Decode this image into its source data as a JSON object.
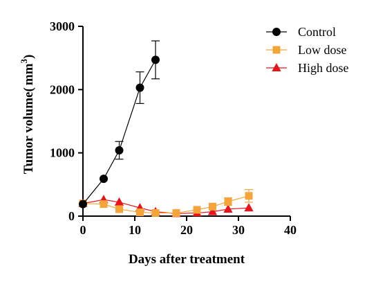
{
  "chart_data": {
    "type": "line",
    "xlabel": "Days after treatment",
    "ylabel_main": "Tumor volume",
    "ylabel_open": "(",
    "ylabel_unit": "mm",
    "ylabel_sup": "3",
    "ylabel_close": ")",
    "xlim": [
      0,
      40
    ],
    "ylim": [
      0,
      3000
    ],
    "x_ticks": [
      0,
      10,
      20,
      30,
      40
    ],
    "y_ticks": [
      0,
      1000,
      2000,
      3000
    ],
    "x_tick_labels": [
      "0",
      "10",
      "20",
      "30",
      "40"
    ],
    "y_tick_labels": [
      "0",
      "1000",
      "2000",
      "3000"
    ],
    "grid": false,
    "legend_position": "top-right",
    "series": [
      {
        "name": "Control",
        "color": "#000000",
        "marker": "circle",
        "points": [
          {
            "x": 0,
            "y": 190,
            "err": 0
          },
          {
            "x": 4,
            "y": 590,
            "err": 0
          },
          {
            "x": 7,
            "y": 1040,
            "err": 140
          },
          {
            "x": 11,
            "y": 2030,
            "err": 250
          },
          {
            "x": 14,
            "y": 2470,
            "err": 300
          }
        ]
      },
      {
        "name": "Low dose",
        "color": "#f5a43a",
        "marker": "square",
        "points": [
          {
            "x": 0,
            "y": 200,
            "err": 0
          },
          {
            "x": 4,
            "y": 190,
            "err": 0
          },
          {
            "x": 7,
            "y": 110,
            "err": 0
          },
          {
            "x": 11,
            "y": 60,
            "err": 0
          },
          {
            "x": 14,
            "y": 50,
            "err": 0
          },
          {
            "x": 18,
            "y": 50,
            "err": 0
          },
          {
            "x": 22,
            "y": 100,
            "err": 0
          },
          {
            "x": 25,
            "y": 150,
            "err": 0
          },
          {
            "x": 28,
            "y": 230,
            "err": 60
          },
          {
            "x": 32,
            "y": 320,
            "err": 100
          }
        ]
      },
      {
        "name": "High dose",
        "color": "#e8141b",
        "marker": "triangle",
        "points": [
          {
            "x": 0,
            "y": 200,
            "err": 0
          },
          {
            "x": 4,
            "y": 260,
            "err": 0
          },
          {
            "x": 7,
            "y": 220,
            "err": 0
          },
          {
            "x": 11,
            "y": 130,
            "err": 0
          },
          {
            "x": 14,
            "y": 70,
            "err": 0
          },
          {
            "x": 18,
            "y": 40,
            "err": 0
          },
          {
            "x": 22,
            "y": 50,
            "err": 0
          },
          {
            "x": 25,
            "y": 70,
            "err": 0
          },
          {
            "x": 28,
            "y": 110,
            "err": 0
          },
          {
            "x": 32,
            "y": 130,
            "err": 0
          }
        ]
      }
    ]
  }
}
